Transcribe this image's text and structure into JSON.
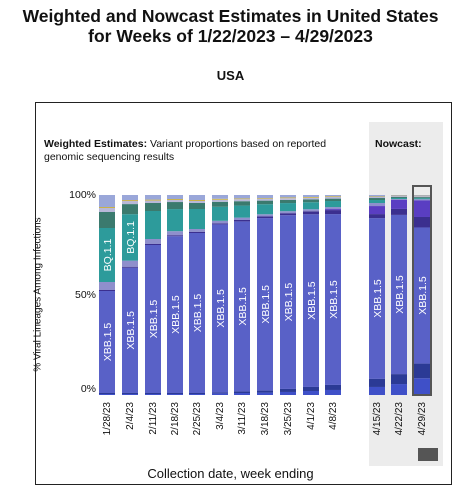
{
  "header": {
    "title_line1": "Weighted and Nowcast Estimates in United States",
    "title_line2": "for Weeks of 1/22/2023 – 4/29/2023",
    "region": "USA"
  },
  "weighted": {
    "heading_bold": "Weighted Estimates:",
    "heading_rest": " Variant proportions based on reported genomic sequencing results"
  },
  "nowcast": {
    "heading": "Nowcast:"
  },
  "axes": {
    "ylabel": "% Viral Lineages Among Infections",
    "xlabel": "Collection date, week ending",
    "yticks": [
      "100%",
      "50%",
      "0%"
    ]
  },
  "chart_data": {
    "type": "bar",
    "stacked": true,
    "ylim": [
      0,
      100
    ],
    "categories": [
      "1/28/23",
      "2/4/23",
      "2/11/23",
      "2/18/23",
      "2/25/23",
      "3/4/23",
      "3/11/23",
      "3/18/23",
      "3/25/23",
      "4/1/23",
      "4/8/23",
      "4/15/23",
      "4/22/23",
      "4/29/23"
    ],
    "nowcast_categories": [
      "4/15/23",
      "4/22/23",
      "4/29/23"
    ],
    "series": [
      {
        "color": "#3f50c8",
        "values": [
          0.5,
          0.5,
          0.5,
          0.5,
          0.5,
          0.8,
          1.0,
          1.2,
          1.5,
          2.0,
          2.5,
          4.0,
          5.5,
          8.0
        ]
      },
      {
        "color": "#2b3a95",
        "values": [
          0.5,
          0.5,
          0.5,
          0.5,
          0.5,
          0.5,
          0.8,
          1.0,
          1.5,
          2.0,
          2.5,
          4.0,
          5.0,
          7.0
        ]
      },
      {
        "label": "XBB.1.5",
        "color": "#5961c7",
        "values": [
          51,
          62,
          74,
          78,
          80,
          84,
          85,
          86,
          86,
          86,
          85,
          80,
          80,
          65
        ]
      },
      {
        "color": "#3b2f8f",
        "values": [
          0.5,
          0.5,
          0.5,
          0.5,
          0.5,
          0.5,
          0.7,
          0.8,
          1.0,
          1.5,
          2.0,
          2.0,
          3.0,
          5.0
        ]
      },
      {
        "color": "#5a3ec2",
        "values": [
          0,
          0,
          0,
          0,
          0,
          0,
          0,
          0,
          0,
          0,
          0.5,
          4.0,
          4.5,
          8.0
        ]
      },
      {
        "color": "#8f8fcc",
        "values": [
          4,
          3,
          2.5,
          2,
          1.5,
          1.3,
          1.2,
          1.1,
          1.0,
          1.0,
          1.0,
          1.5,
          0.5,
          0.5
        ]
      },
      {
        "label": "BQ.1.1",
        "color": "#2d9b9b",
        "values": [
          27,
          23,
          14,
          11,
          10,
          7,
          6,
          5,
          4,
          3.5,
          3.0,
          1.5,
          0.5,
          0.5
        ]
      },
      {
        "color": "#3b7a6e",
        "values": [
          8,
          5,
          4,
          3.5,
          3,
          2.5,
          2.2,
          1.8,
          1.6,
          1.4,
          1.2,
          1.0,
          0.5,
          0.5
        ]
      },
      {
        "color": "#b8b8d8",
        "values": [
          2,
          1.5,
          1.2,
          1.0,
          1.0,
          1.0,
          1.0,
          0.8,
          0.8,
          0.8,
          0.8,
          0.5,
          0.5,
          0.5
        ]
      },
      {
        "color": "#c9b24a",
        "values": [
          0.5,
          0.5,
          0.5,
          0.5,
          0.5,
          0.5,
          0.4,
          0.4,
          0.4,
          0.4,
          0.4,
          0.3,
          0.2,
          0.2
        ]
      },
      {
        "color": "#9aa7d9",
        "values": [
          6,
          2.5,
          2.3,
          2.0,
          2.5,
          1.9,
          1.7,
          1.6,
          1.2,
          1.0,
          0.6,
          0.7,
          0.3,
          0.3
        ]
      }
    ]
  },
  "legend": {
    "swatch_color": "#555555"
  }
}
